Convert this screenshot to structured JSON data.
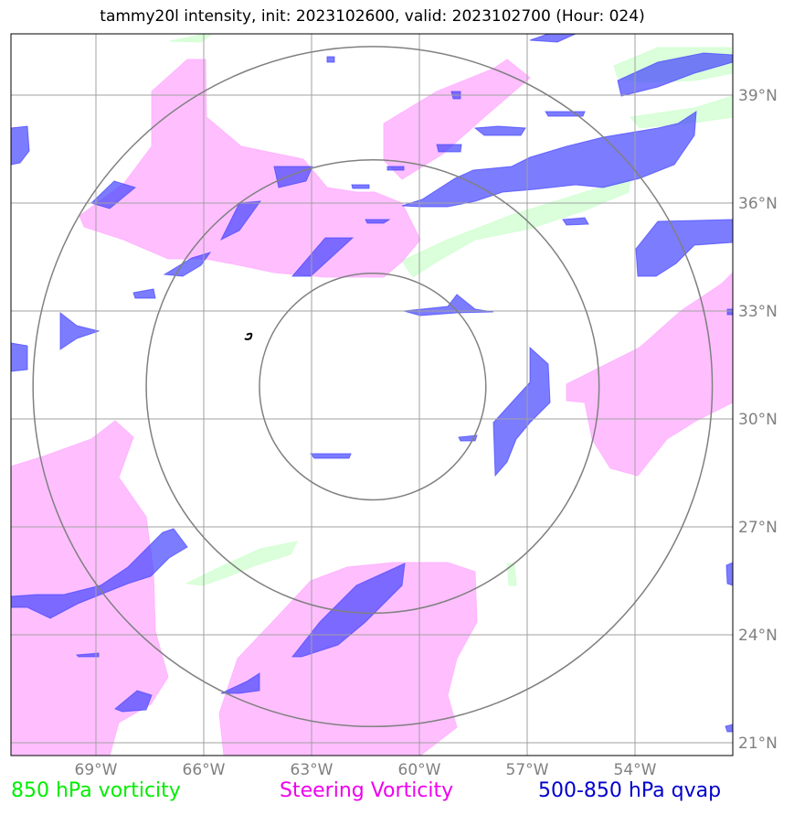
{
  "title": "tammy20l intensity, init: 2023102600, valid: 2023102700 (Hour: 024)",
  "map": {
    "lon_labels": [
      "69°W",
      "66°W",
      "63°W",
      "60°W",
      "57°W",
      "54°W"
    ],
    "lat_labels": [
      "39°N",
      "36°N",
      "33°N",
      "30°N",
      "27°N",
      "24°N",
      "21°N"
    ],
    "storm_center": {
      "lon": -61.3,
      "lat": 30.9
    },
    "range_rings_deg": [
      3,
      6,
      9
    ],
    "colors": {
      "grid": "#a0a0a0",
      "rings": "#808080",
      "vort850": "#ccffcc",
      "steering": "#ffaaff",
      "qvap": "#4444ff"
    }
  },
  "legend": [
    {
      "label": "850 hPa vorticity",
      "color": "#00ee00"
    },
    {
      "label": "Steering Vorticity",
      "color": "#ee00ee"
    },
    {
      "label": "500-850 hPa qvap",
      "color": "#0000cc"
    }
  ]
}
